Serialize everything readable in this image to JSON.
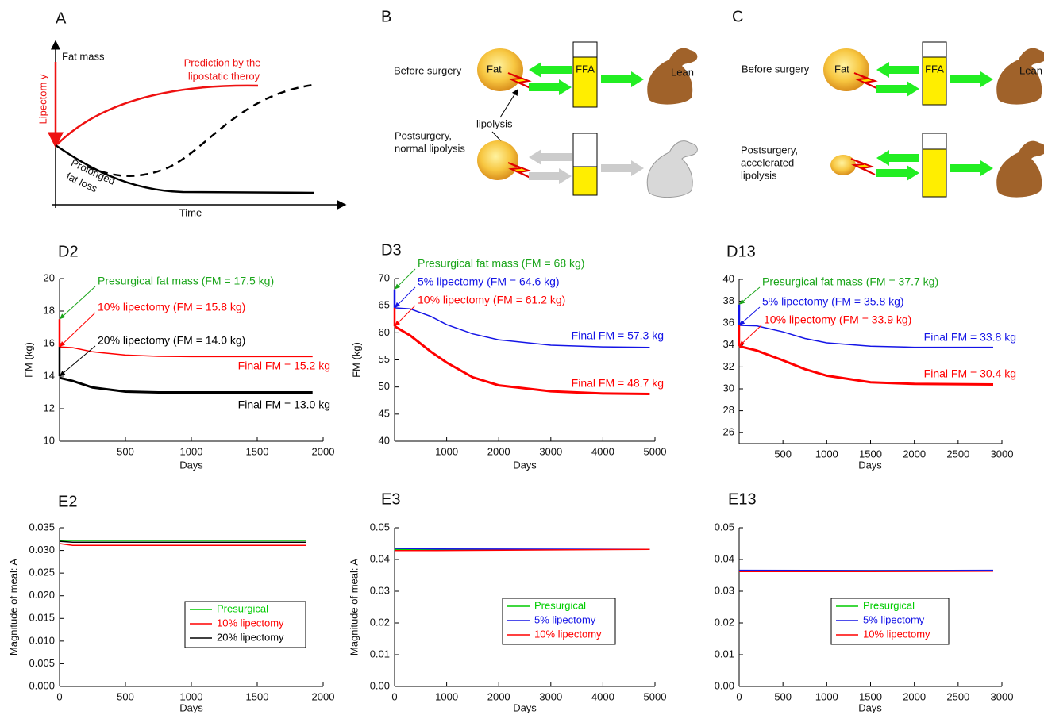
{
  "panels": [
    {
      "label": "A",
      "y_axis": "Fat mass",
      "x_axis": "Time",
      "prediction": [
        "Prediction by the",
        "lipostatic theroy"
      ],
      "lipectomy": "Lipectom y",
      "prolonged": [
        "Prolonged",
        "fat loss"
      ]
    },
    {
      "label": "B",
      "before": "Before surgery",
      "fat": "Fat",
      "ffa": "FFA",
      "lean": "Lean",
      "lipolysis": "lipolysis",
      "after": [
        "Postsurgery,",
        "normal lipolysis"
      ]
    },
    {
      "label": "C",
      "before": "Before surgery",
      "fat": "Fat",
      "ffa": "FFA",
      "lean": "Lean",
      "after": [
        "Postsurgery,",
        "accelerated",
        "lipolysis"
      ]
    }
  ],
  "chart_data": [
    {
      "type": "line",
      "title": "D2",
      "x_label": "Days",
      "y_label": "FM (kg)",
      "xlim": [
        0,
        2000
      ],
      "xticks": [
        500,
        1000,
        1500,
        2000
      ],
      "ylim": [
        10,
        20
      ],
      "yticks": [
        10,
        12,
        14,
        16,
        18,
        20
      ],
      "x": [
        0,
        100,
        250,
        500,
        750,
        1000,
        1500,
        1920
      ],
      "series": [
        {
          "color": "#ff0000",
          "values": [
            15.8,
            15.75,
            15.5,
            15.3,
            15.22,
            15.2,
            15.2,
            15.2
          ]
        },
        {
          "color": "#000000",
          "values": [
            13.9,
            13.7,
            13.3,
            13.05,
            13.0,
            13.0,
            13.0,
            13.0
          ]
        }
      ],
      "annotations": [
        {
          "text": "Presurgical fat mass (FM = 17.5 kg)",
          "color": "#1aa51a",
          "x": 0,
          "y": 17.5
        },
        {
          "text": "10% lipectomy (FM = 15.8 kg)",
          "color": "#ff0000",
          "x": 0,
          "y": 15.8
        },
        {
          "text": "20% lipectomy (FM = 14.0 kg)",
          "color": "#000000",
          "x": 0,
          "y": 14.0
        },
        {
          "text": "Final FM = 15.2 kg",
          "color": "#ff0000"
        },
        {
          "text": "Final FM = 13.0 kg",
          "color": "#000000"
        }
      ]
    },
    {
      "type": "line",
      "title": "D3",
      "x_label": "Days",
      "y_label": "FM (kg)",
      "xlim": [
        0,
        5000
      ],
      "xticks": [
        1000,
        2000,
        3000,
        4000,
        5000
      ],
      "ylim": [
        40,
        70
      ],
      "yticks": [
        40,
        45,
        50,
        55,
        60,
        65,
        70
      ],
      "x": [
        0,
        300,
        700,
        1000,
        1500,
        2000,
        3000,
        4000,
        4900
      ],
      "series": [
        {
          "color": "#1414e6",
          "values": [
            64.6,
            64.4,
            63,
            61.5,
            59.8,
            58.7,
            57.7,
            57.4,
            57.3
          ]
        },
        {
          "color": "#ff0000",
          "values": [
            61.2,
            59.5,
            56.5,
            54.5,
            51.8,
            50.3,
            49.2,
            48.8,
            48.7
          ]
        }
      ],
      "annotations": [
        {
          "text": "Presurgical fat mass (FM = 68 kg)",
          "color": "#1aa51a",
          "x": 0,
          "y": 68
        },
        {
          "text": "5% lipectomy (FM = 64.6 kg)",
          "color": "#1414e6",
          "x": 0,
          "y": 64.6
        },
        {
          "text": "10% lipectomy (FM = 61.2 kg)",
          "color": "#ff0000",
          "x": 0,
          "y": 61.2
        },
        {
          "text": "Final FM = 57.3 kg",
          "color": "#1414e6"
        },
        {
          "text": "Final FM = 48.7 kg",
          "color": "#ff0000"
        }
      ]
    },
    {
      "type": "line",
      "title": "D13",
      "x_label": "Days",
      "xlim": [
        0,
        3000
      ],
      "xticks": [
        500,
        1000,
        1500,
        2000,
        2500,
        3000
      ],
      "ylim": [
        25,
        40
      ],
      "yticks": [
        26,
        28,
        30,
        32,
        34,
        36,
        38,
        40
      ],
      "x": [
        0,
        200,
        500,
        750,
        1000,
        1500,
        2000,
        2900
      ],
      "series": [
        {
          "color": "#1414e6",
          "values": [
            35.8,
            35.75,
            35.2,
            34.6,
            34.2,
            33.9,
            33.8,
            33.8
          ]
        },
        {
          "color": "#ff0000",
          "values": [
            33.9,
            33.5,
            32.6,
            31.8,
            31.2,
            30.6,
            30.45,
            30.4
          ]
        }
      ],
      "annotations": [
        {
          "text": "Presurgical fat mass (FM = 37.7 kg)",
          "color": "#1aa51a",
          "x": 0,
          "y": 37.7
        },
        {
          "text": "5% lipectomy (FM = 35.8 kg)",
          "color": "#1414e6",
          "x": 0,
          "y": 35.8
        },
        {
          "text": "10% lipectomy (FM = 33.9 kg)",
          "color": "#ff0000",
          "x": 0,
          "y": 33.9
        },
        {
          "text": "Final FM = 33.8 kg",
          "color": "#1414e6"
        },
        {
          "text": "Final FM = 30.4 kg",
          "color": "#ff0000"
        }
      ]
    },
    {
      "type": "line",
      "title": "E2",
      "x_label": "Days",
      "y_label": "Magnitude of meal: A",
      "xlim": [
        0,
        2000
      ],
      "xticks": [
        0,
        500,
        1000,
        1500,
        2000
      ],
      "ylim": [
        0,
        0.035
      ],
      "yticks": [
        {
          "value": 0,
          "label": "0.000"
        },
        {
          "value": 0.005,
          "label": "0.005"
        },
        {
          "value": 0.01,
          "label": "0.010"
        },
        {
          "value": 0.015,
          "label": "0.015"
        },
        {
          "value": 0.02,
          "label": "0.020"
        },
        {
          "value": 0.025,
          "label": "0.025"
        },
        {
          "value": 0.03,
          "label": "0.030"
        },
        {
          "value": 0.035,
          "label": "0.035"
        }
      ],
      "x": [
        0,
        100,
        1870
      ],
      "series": [
        {
          "name": "Presurgical",
          "color": "#00cc00",
          "values": [
            0.0322,
            0.0322,
            0.0322
          ]
        },
        {
          "name": "10% lipectomy",
          "color": "#ff0000",
          "values": [
            0.0315,
            0.0311,
            0.0311
          ]
        },
        {
          "name": "20% lipectomy",
          "color": "#000000",
          "values": [
            0.032,
            0.0318,
            0.0318
          ]
        }
      ]
    },
    {
      "type": "line",
      "title": "E3",
      "x_label": "Days",
      "y_label": "Magnitude of meal: A",
      "xlim": [
        0,
        5000
      ],
      "xticks": [
        0,
        1000,
        2000,
        3000,
        4000,
        5000
      ],
      "ylim": [
        0,
        0.05
      ],
      "yticks": [
        {
          "value": 0,
          "label": "0.00"
        },
        {
          "value": 0.01,
          "label": "0.01"
        },
        {
          "value": 0.02,
          "label": "0.02"
        },
        {
          "value": 0.03,
          "label": "0.03"
        },
        {
          "value": 0.04,
          "label": "0.04"
        },
        {
          "value": 0.05,
          "label": "0.05"
        }
      ],
      "x": [
        0,
        800,
        4900
      ],
      "series": [
        {
          "name": "Presurgical",
          "color": "#00cc00",
          "values": [
            0.0432,
            0.0432,
            0.0432
          ]
        },
        {
          "name": "5% lipectomy",
          "color": "#1414e6",
          "values": [
            0.0435,
            0.0433,
            0.0432
          ]
        },
        {
          "name": "10% lipectomy",
          "color": "#ff0000",
          "values": [
            0.0428,
            0.0428,
            0.0432
          ]
        }
      ]
    },
    {
      "type": "line",
      "title": "E13",
      "x_label": "Days",
      "xlim": [
        0,
        3000
      ],
      "xticks": [
        0,
        500,
        1000,
        1500,
        2000,
        2500,
        3000
      ],
      "ylim": [
        0,
        0.05
      ],
      "yticks": [
        {
          "value": 0,
          "label": "0.00"
        },
        {
          "value": 0.01,
          "label": "0.01"
        },
        {
          "value": 0.02,
          "label": "0.02"
        },
        {
          "value": 0.03,
          "label": "0.03"
        },
        {
          "value": 0.04,
          "label": "0.04"
        },
        {
          "value": 0.05,
          "label": "0.05"
        }
      ],
      "x": [
        0,
        1500,
        2900
      ],
      "series": [
        {
          "name": "Presurgical",
          "color": "#00cc00",
          "values": [
            0.0365,
            0.0365,
            0.0365
          ]
        },
        {
          "name": "5% lipectomy",
          "color": "#1414e6",
          "values": [
            0.0366,
            0.0365,
            0.0366
          ]
        },
        {
          "name": "10% lipectomy",
          "color": "#ff0000",
          "values": [
            0.0362,
            0.0362,
            0.0363
          ]
        }
      ]
    }
  ]
}
